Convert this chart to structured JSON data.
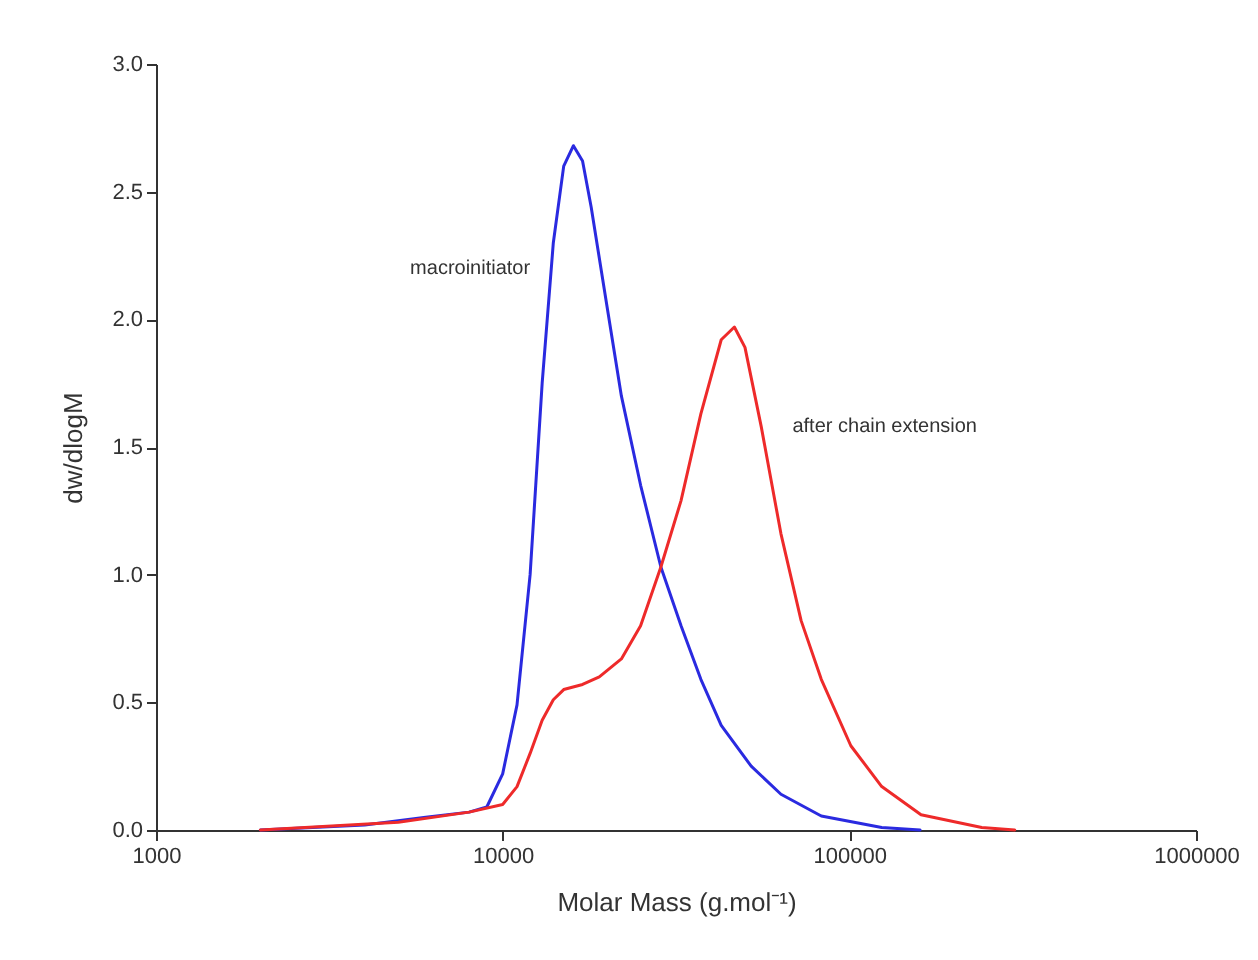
{
  "chart_data": {
    "type": "line",
    "xlabel": "Molar Mass (g.mol⁻¹)",
    "ylabel": "dw/dlogM",
    "log": "x",
    "grid": false,
    "line_style": "solid",
    "marker": "none",
    "xlim": [
      1000,
      1000000
    ],
    "xticks": [
      1000,
      10000,
      100000,
      1000000
    ],
    "ylim": [
      0,
      3
    ],
    "yticks": [
      {
        "value": 0,
        "label": "0.0"
      },
      0.5,
      {
        "value": 1,
        "label": "1.0"
      },
      1.5,
      {
        "value": 2,
        "label": "2.0"
      },
      2.5,
      {
        "value": 3,
        "label": "3.0"
      }
    ],
    "series": [
      {
        "color": "#2a2ae0",
        "x": [
          2000,
          4000,
          6000,
          8000,
          9000,
          10000,
          11000,
          12000,
          13000,
          14000,
          15000,
          16000,
          17000,
          18000,
          20000,
          22000,
          25000,
          28600,
          32700,
          37300,
          42700,
          52100,
          63500,
          83000,
          124000,
          160000
        ],
        "values": [
          0,
          0.02,
          0.05,
          0.07,
          0.09,
          0.22,
          0.49,
          1.0,
          1.75,
          2.3,
          2.6,
          2.68,
          2.62,
          2.44,
          2.05,
          1.7,
          1.35,
          1.03,
          0.8,
          0.59,
          0.41,
          0.25,
          0.14,
          0.055,
          0.01,
          0
        ]
      },
      {
        "color": "#ee2a2a",
        "x": [
          2000,
          5000,
          8000,
          10000,
          11000,
          12000,
          13000,
          14000,
          15000,
          17000,
          19000,
          22000,
          25000,
          28600,
          32700,
          37300,
          42700,
          46600,
          50000,
          55700,
          63500,
          72600,
          83000,
          101000,
          124000,
          161000,
          241000,
          300000
        ],
        "values": [
          0,
          0.03,
          0.07,
          0.1,
          0.17,
          0.3,
          0.43,
          0.51,
          0.55,
          0.57,
          0.6,
          0.67,
          0.8,
          1.03,
          1.29,
          1.63,
          1.92,
          1.97,
          1.89,
          1.58,
          1.16,
          0.82,
          0.59,
          0.33,
          0.17,
          0.06,
          0.01,
          0
        ]
      }
    ],
    "annotations": [
      {
        "text": "macroinitiator",
        "x": 13000,
        "y": 2.1
      },
      {
        "text": "after chain extension",
        "x": 60000,
        "y": 1.37
      }
    ]
  }
}
